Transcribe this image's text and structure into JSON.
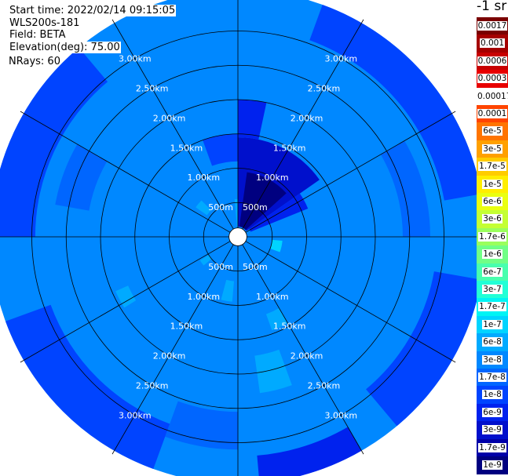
{
  "header": {
    "start_time": "Start time: 2022/02/14 09:15:05",
    "instrument": "WLS200s-181",
    "field": "Field: BETA",
    "elevation": "Elevation(deg): 75.00",
    "nrays": "NRays: 60"
  },
  "colorbar": {
    "unit_label": "-1 sr",
    "levels": [
      {
        "label": "0.0017",
        "color": "#7a0000"
      },
      {
        "label": "0.001",
        "color": "#a50000"
      },
      {
        "label": "0.0006",
        "color": "#c80000"
      },
      {
        "label": "0.0003",
        "color": "#e80000"
      },
      {
        "label": "0.00017",
        "color": "#ffffff"
      },
      {
        "label": "0.0001",
        "color": "#ff4400"
      },
      {
        "label": "6e-5",
        "color": "#ff7400"
      },
      {
        "label": "3e-5",
        "color": "#ffa000"
      },
      {
        "label": "1.7e-5",
        "color": "#ffcc00"
      },
      {
        "label": "1e-5",
        "color": "#ffee00"
      },
      {
        "label": "6e-6",
        "color": "#eaff10"
      },
      {
        "label": "3e-6",
        "color": "#c4ff33"
      },
      {
        "label": "1.7e-6",
        "color": "#9aff5c"
      },
      {
        "label": "1e-6",
        "color": "#70ff86"
      },
      {
        "label": "6e-7",
        "color": "#48ffae"
      },
      {
        "label": "3e-7",
        "color": "#22ffd6"
      },
      {
        "label": "1.7e-7",
        "color": "#00f4f4"
      },
      {
        "label": "1e-7",
        "color": "#00d4ff"
      },
      {
        "label": "6e-8",
        "color": "#00aaff"
      },
      {
        "label": "3e-8",
        "color": "#0088ff"
      },
      {
        "label": "1.7e-8",
        "color": "#0066ff"
      },
      {
        "label": "1e-8",
        "color": "#0044ff"
      },
      {
        "label": "6e-9",
        "color": "#0022ee"
      },
      {
        "label": "3e-9",
        "color": "#0010cc"
      },
      {
        "label": "1.7e-9",
        "color": "#0000a8"
      },
      {
        "label": "1e-9",
        "color": "#000080"
      }
    ]
  },
  "chart_data": {
    "type": "heatmap",
    "projection": "polar-ppi",
    "rings": [
      {
        "range_m": 500,
        "label": "500m"
      },
      {
        "range_m": 1000,
        "label": "1.00km"
      },
      {
        "range_m": 1500,
        "label": "1.50km"
      },
      {
        "range_m": 2000,
        "label": "2.00km"
      },
      {
        "range_m": 2500,
        "label": "2.50km"
      },
      {
        "range_m": 3000,
        "label": "3.00km"
      }
    ],
    "max_range_m": 3600,
    "blank_radius_m": 130,
    "n_rays": 60,
    "spokes_deg": [
      0,
      30,
      60,
      90,
      120,
      150,
      180,
      210,
      240,
      270,
      300,
      330
    ],
    "background_value": "3e-8",
    "regions": [
      {
        "az_from": 0,
        "az_to": 55,
        "r_from_m": 150,
        "r_to_m": 1450,
        "value": "3e-9"
      },
      {
        "az_from": 8,
        "az_to": 48,
        "r_from_m": 150,
        "r_to_m": 950,
        "value": "1e-9"
      },
      {
        "az_from": 55,
        "az_to": 68,
        "r_from_m": 200,
        "r_to_m": 1100,
        "value": "6e-9"
      },
      {
        "az_from": 0,
        "az_to": 12,
        "r_from_m": 1450,
        "r_to_m": 2000,
        "value": "6e-9"
      },
      {
        "az_from": 340,
        "az_to": 360,
        "r_from_m": 1100,
        "r_to_m": 1500,
        "value": "1e-8"
      },
      {
        "az_from": 95,
        "az_to": 110,
        "r_from_m": 500,
        "r_to_m": 650,
        "value": "1e-7"
      },
      {
        "az_from": 150,
        "az_to": 160,
        "r_from_m": 1200,
        "r_to_m": 1450,
        "value": "6e-8"
      },
      {
        "az_from": 160,
        "az_to": 172,
        "r_from_m": 1750,
        "r_to_m": 2300,
        "value": "6e-8"
      },
      {
        "az_from": 185,
        "az_to": 195,
        "r_from_m": 650,
        "r_to_m": 950,
        "value": "6e-8"
      },
      {
        "az_from": 230,
        "az_to": 238,
        "r_from_m": 500,
        "r_to_m": 650,
        "value": "6e-8"
      },
      {
        "az_from": 238,
        "az_to": 246,
        "r_from_m": 1750,
        "r_to_m": 1950,
        "value": "6e-8"
      },
      {
        "az_from": 305,
        "az_to": 315,
        "r_from_m": 550,
        "r_to_m": 750,
        "value": "6e-8"
      },
      {
        "az_from": 355,
        "az_to": 360,
        "r_from_m": 150,
        "r_to_m": 550,
        "value": "6e-8"
      },
      {
        "az_from": 100,
        "az_to": 140,
        "r_from_m": 2900,
        "r_to_m": 3600,
        "value": "1e-8"
      },
      {
        "az_from": 200,
        "az_to": 250,
        "r_from_m": 2900,
        "r_to_m": 3600,
        "value": "1e-8"
      },
      {
        "az_from": 270,
        "az_to": 320,
        "r_from_m": 2950,
        "r_to_m": 3600,
        "value": "1e-8"
      },
      {
        "az_from": 20,
        "az_to": 80,
        "r_from_m": 3050,
        "r_to_m": 3600,
        "value": "1e-8"
      },
      {
        "az_from": 150,
        "az_to": 175,
        "r_from_m": 3200,
        "r_to_m": 3600,
        "value": "6e-9"
      },
      {
        "az_from": 60,
        "az_to": 90,
        "r_from_m": 2400,
        "r_to_m": 2800,
        "value": "1.7e-8"
      },
      {
        "az_from": 280,
        "az_to": 300,
        "r_from_m": 2200,
        "r_to_m": 2700,
        "value": "1.7e-8"
      },
      {
        "az_from": 180,
        "az_to": 200,
        "r_from_m": 2550,
        "r_to_m": 3100,
        "value": "1.7e-8"
      }
    ]
  }
}
